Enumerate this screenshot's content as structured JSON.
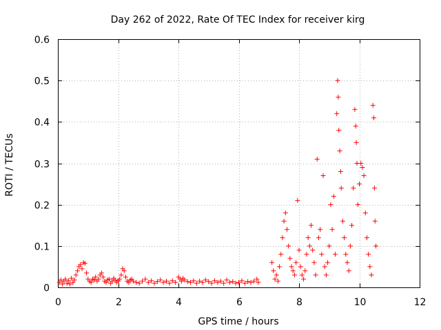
{
  "chart_data": {
    "type": "scatter",
    "title": "Day 262 of 2022, Rate Of TEC Index for receiver kirg",
    "xlabel": "GPS time / hours",
    "ylabel": "ROTI / TECUs",
    "xlim": [
      0,
      12
    ],
    "ylim": [
      0,
      0.6
    ],
    "x_ticks": [
      0,
      2,
      4,
      6,
      8,
      10,
      12
    ],
    "y_ticks": [
      0,
      0.1,
      0.2,
      0.3,
      0.4,
      0.5,
      0.6
    ],
    "x_tick_labels": [
      "0",
      "2",
      "4",
      "6",
      "8",
      "10",
      "12"
    ],
    "y_tick_labels": [
      "0",
      "0.1",
      "0.2",
      "0.3",
      "0.4",
      "0.5",
      "0.6"
    ],
    "grid": true,
    "marker": "+",
    "color": "#ff0000",
    "points": [
      [
        0.05,
        0.012
      ],
      [
        0.1,
        0.018
      ],
      [
        0.15,
        0.008
      ],
      [
        0.2,
        0.015
      ],
      [
        0.25,
        0.02
      ],
      [
        0.3,
        0.01
      ],
      [
        0.35,
        0.016
      ],
      [
        0.4,
        0.008
      ],
      [
        0.45,
        0.022
      ],
      [
        0.5,
        0.012
      ],
      [
        0.55,
        0.018
      ],
      [
        0.6,
        0.03
      ],
      [
        0.65,
        0.04
      ],
      [
        0.7,
        0.05
      ],
      [
        0.75,
        0.055
      ],
      [
        0.8,
        0.045
      ],
      [
        0.85,
        0.06
      ],
      [
        0.9,
        0.058
      ],
      [
        0.95,
        0.035
      ],
      [
        1.0,
        0.02
      ],
      [
        1.05,
        0.015
      ],
      [
        1.1,
        0.012
      ],
      [
        1.15,
        0.02
      ],
      [
        1.2,
        0.018
      ],
      [
        1.25,
        0.025
      ],
      [
        1.3,
        0.015
      ],
      [
        1.35,
        0.02
      ],
      [
        1.4,
        0.03
      ],
      [
        1.45,
        0.035
      ],
      [
        1.5,
        0.025
      ],
      [
        1.55,
        0.015
      ],
      [
        1.6,
        0.012
      ],
      [
        1.65,
        0.018
      ],
      [
        1.7,
        0.02
      ],
      [
        1.75,
        0.01
      ],
      [
        1.8,
        0.015
      ],
      [
        1.85,
        0.022
      ],
      [
        1.9,
        0.018
      ],
      [
        1.95,
        0.012
      ],
      [
        2.0,
        0.016
      ],
      [
        2.05,
        0.02
      ],
      [
        2.1,
        0.03
      ],
      [
        2.15,
        0.045
      ],
      [
        2.2,
        0.04
      ],
      [
        2.25,
        0.025
      ],
      [
        2.3,
        0.015
      ],
      [
        2.35,
        0.012
      ],
      [
        2.4,
        0.018
      ],
      [
        2.45,
        0.02
      ],
      [
        2.5,
        0.015
      ],
      [
        2.6,
        0.012
      ],
      [
        2.7,
        0.01
      ],
      [
        2.8,
        0.015
      ],
      [
        2.9,
        0.02
      ],
      [
        3.0,
        0.012
      ],
      [
        3.1,
        0.016
      ],
      [
        3.2,
        0.01
      ],
      [
        3.3,
        0.014
      ],
      [
        3.4,
        0.018
      ],
      [
        3.5,
        0.012
      ],
      [
        3.6,
        0.015
      ],
      [
        3.7,
        0.01
      ],
      [
        3.8,
        0.016
      ],
      [
        3.9,
        0.012
      ],
      [
        4.0,
        0.025
      ],
      [
        4.05,
        0.02
      ],
      [
        4.1,
        0.015
      ],
      [
        4.15,
        0.022
      ],
      [
        4.2,
        0.018
      ],
      [
        4.3,
        0.014
      ],
      [
        4.4,
        0.012
      ],
      [
        4.5,
        0.016
      ],
      [
        4.6,
        0.01
      ],
      [
        4.7,
        0.015
      ],
      [
        4.8,
        0.012
      ],
      [
        4.9,
        0.018
      ],
      [
        5.0,
        0.014
      ],
      [
        5.1,
        0.01
      ],
      [
        5.2,
        0.016
      ],
      [
        5.3,
        0.012
      ],
      [
        5.4,
        0.015
      ],
      [
        5.5,
        0.01
      ],
      [
        5.6,
        0.018
      ],
      [
        5.7,
        0.012
      ],
      [
        5.8,
        0.014
      ],
      [
        5.9,
        0.01
      ],
      [
        6.0,
        0.012
      ],
      [
        6.1,
        0.016
      ],
      [
        6.2,
        0.01
      ],
      [
        6.3,
        0.014
      ],
      [
        6.4,
        0.012
      ],
      [
        6.5,
        0.015
      ],
      [
        6.6,
        0.02
      ],
      [
        6.65,
        0.012
      ],
      [
        7.1,
        0.06
      ],
      [
        7.15,
        0.04
      ],
      [
        7.2,
        0.02
      ],
      [
        7.25,
        0.03
      ],
      [
        7.3,
        0.015
      ],
      [
        7.35,
        0.05
      ],
      [
        7.4,
        0.08
      ],
      [
        7.45,
        0.12
      ],
      [
        7.5,
        0.16
      ],
      [
        7.55,
        0.18
      ],
      [
        7.6,
        0.14
      ],
      [
        7.65,
        0.1
      ],
      [
        7.7,
        0.07
      ],
      [
        7.75,
        0.05
      ],
      [
        7.8,
        0.04
      ],
      [
        7.85,
        0.03
      ],
      [
        7.9,
        0.06
      ],
      [
        7.95,
        0.21
      ],
      [
        8.0,
        0.09
      ],
      [
        8.05,
        0.05
      ],
      [
        8.1,
        0.03
      ],
      [
        8.15,
        0.02
      ],
      [
        8.2,
        0.04
      ],
      [
        8.25,
        0.08
      ],
      [
        8.3,
        0.12
      ],
      [
        8.35,
        0.1
      ],
      [
        8.4,
        0.15
      ],
      [
        8.45,
        0.09
      ],
      [
        8.5,
        0.06
      ],
      [
        8.55,
        0.03
      ],
      [
        8.6,
        0.31
      ],
      [
        8.65,
        0.12
      ],
      [
        8.7,
        0.14
      ],
      [
        8.75,
        0.08
      ],
      [
        8.8,
        0.27
      ],
      [
        8.85,
        0.05
      ],
      [
        8.9,
        0.03
      ],
      [
        8.95,
        0.06
      ],
      [
        9.0,
        0.1
      ],
      [
        9.05,
        0.2
      ],
      [
        9.1,
        0.14
      ],
      [
        9.15,
        0.22
      ],
      [
        9.2,
        0.08
      ],
      [
        9.25,
        0.42
      ],
      [
        9.28,
        0.5
      ],
      [
        9.3,
        0.46
      ],
      [
        9.32,
        0.38
      ],
      [
        9.35,
        0.33
      ],
      [
        9.38,
        0.28
      ],
      [
        9.4,
        0.24
      ],
      [
        9.45,
        0.16
      ],
      [
        9.5,
        0.12
      ],
      [
        9.55,
        0.08
      ],
      [
        9.6,
        0.06
      ],
      [
        9.65,
        0.04
      ],
      [
        9.7,
        0.1
      ],
      [
        9.75,
        0.15
      ],
      [
        9.8,
        0.24
      ],
      [
        9.85,
        0.43
      ],
      [
        9.88,
        0.39
      ],
      [
        9.9,
        0.35
      ],
      [
        9.92,
        0.3
      ],
      [
        9.95,
        0.2
      ],
      [
        10.0,
        0.25
      ],
      [
        10.05,
        0.3
      ],
      [
        10.1,
        0.29
      ],
      [
        10.15,
        0.27
      ],
      [
        10.2,
        0.18
      ],
      [
        10.25,
        0.12
      ],
      [
        10.3,
        0.08
      ],
      [
        10.35,
        0.05
      ],
      [
        10.4,
        0.03
      ],
      [
        10.45,
        0.44
      ],
      [
        10.48,
        0.41
      ],
      [
        10.5,
        0.24
      ],
      [
        10.52,
        0.16
      ],
      [
        10.55,
        0.1
      ]
    ]
  }
}
